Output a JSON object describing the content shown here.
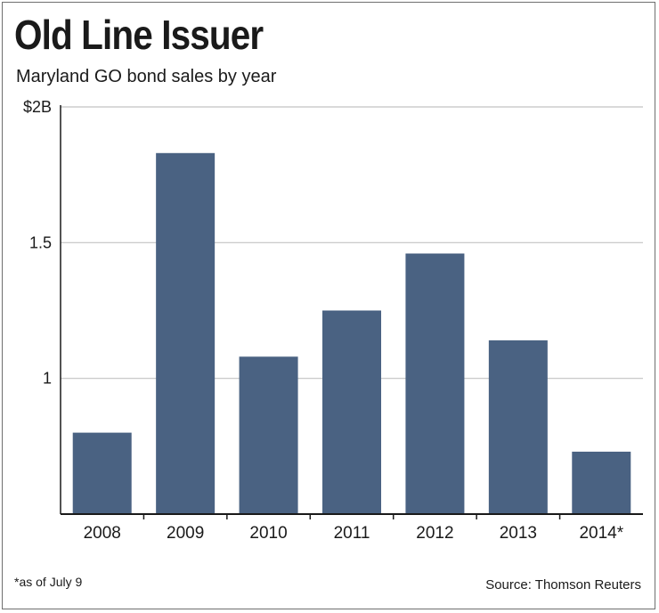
{
  "chart_data": {
    "type": "bar",
    "title": "Old Line Issuer",
    "subtitle": "Maryland GO bond sales by year",
    "categories": [
      "2008",
      "2009",
      "2010",
      "2011",
      "2012",
      "2013",
      "2014*"
    ],
    "values": [
      0.8,
      1.83,
      1.08,
      1.25,
      1.46,
      1.14,
      0.73
    ],
    "y_ticks": [
      {
        "value": 2.0,
        "label": "$2B"
      },
      {
        "value": 1.5,
        "label": "1.5"
      },
      {
        "value": 1.0,
        "label": "1"
      }
    ],
    "ylim": [
      0.5,
      2.0
    ],
    "xlabel": "",
    "ylabel": "",
    "grid": true,
    "bar_color": "#4a6282",
    "grid_color": "#c2c2c2"
  },
  "footnote": "*as of July 9",
  "source": "Source: Thomson Reuters"
}
